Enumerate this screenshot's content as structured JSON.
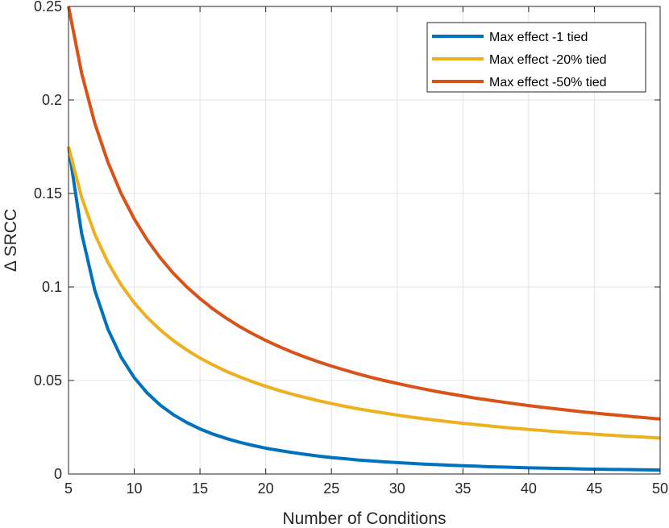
{
  "chart_data": {
    "type": "line",
    "title": "",
    "xlabel": "Number of Conditions",
    "ylabel": "Δ SRCC",
    "xlim": [
      5,
      50
    ],
    "ylim": [
      0,
      0.25
    ],
    "xticks": [
      5,
      10,
      15,
      20,
      25,
      30,
      35,
      40,
      45,
      50
    ],
    "xtick_labels": [
      "5",
      "10",
      "15",
      "20",
      "25",
      "30",
      "35",
      "40",
      "45",
      "50"
    ],
    "yticks": [
      0,
      0.05,
      0.1,
      0.15,
      0.2,
      0.25
    ],
    "ytick_labels": [
      "0",
      "0.05",
      "0.1",
      "0.15",
      "0.2",
      "0.25"
    ],
    "grid": true,
    "legend_position": "top-right",
    "x": [
      5,
      6,
      7,
      8,
      9,
      10,
      11,
      12,
      13,
      14,
      15,
      16,
      17,
      18,
      19,
      20,
      21,
      22,
      23,
      24,
      25,
      26,
      27,
      28,
      29,
      30,
      31,
      32,
      33,
      34,
      35,
      36,
      37,
      38,
      39,
      40,
      41,
      42,
      43,
      44,
      45,
      46,
      47,
      48,
      49,
      50
    ],
    "series": [
      {
        "name": "Max effect -1 tied",
        "color": "#0072BD",
        "values": [
          0.175,
          0.1286,
          0.0982,
          0.0774,
          0.0625,
          0.0515,
          0.0432,
          0.0367,
          0.0316,
          0.0275,
          0.0241,
          0.0213,
          0.019,
          0.017,
          0.0153,
          0.0138,
          0.0126,
          0.0115,
          0.0105,
          0.0096,
          0.0088,
          0.0082,
          0.0075,
          0.007,
          0.0065,
          0.0061,
          0.0057,
          0.0053,
          0.005,
          0.0047,
          0.0044,
          0.0042,
          0.0039,
          0.0037,
          0.0035,
          0.0033,
          0.0032,
          0.003,
          0.0029,
          0.0027,
          0.0026,
          0.0025,
          0.0024,
          0.0023,
          0.0022,
          0.0021
        ]
      },
      {
        "name": "Max effect -20% tied",
        "color": "#EDB120",
        "values": [
          0.175,
          0.1479,
          0.1282,
          0.1131,
          0.1012,
          0.0915,
          0.0836,
          0.0769,
          0.0712,
          0.0663,
          0.062,
          0.0583,
          0.0549,
          0.052,
          0.0493,
          0.0469,
          0.0447,
          0.0427,
          0.0409,
          0.0392,
          0.0377,
          0.0362,
          0.0349,
          0.0337,
          0.0326,
          0.0315,
          0.0305,
          0.0296,
          0.0287,
          0.0279,
          0.0271,
          0.0264,
          0.0257,
          0.025,
          0.0244,
          0.0238,
          0.0233,
          0.0227,
          0.0222,
          0.0217,
          0.0213,
          0.0208,
          0.0204,
          0.02,
          0.0196,
          0.0192
        ]
      },
      {
        "name": "Max effect -50% tied",
        "color": "#D95319",
        "values": [
          0.25,
          0.2143,
          0.1875,
          0.1667,
          0.15,
          0.1364,
          0.125,
          0.1154,
          0.1071,
          0.1,
          0.0938,
          0.0882,
          0.0833,
          0.0789,
          0.075,
          0.0714,
          0.0682,
          0.0652,
          0.0625,
          0.06,
          0.0577,
          0.0556,
          0.0536,
          0.0517,
          0.05,
          0.0484,
          0.0469,
          0.0455,
          0.0441,
          0.0429,
          0.0417,
          0.0405,
          0.0395,
          0.0385,
          0.0375,
          0.0366,
          0.0357,
          0.0349,
          0.0341,
          0.0333,
          0.0326,
          0.0319,
          0.0313,
          0.0306,
          0.03,
          0.0294
        ]
      }
    ]
  }
}
